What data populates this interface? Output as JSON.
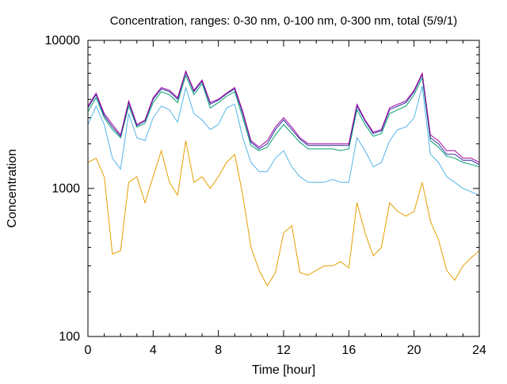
{
  "chart_data": {
    "type": "line",
    "title": "Concentration, ranges: 0-30 nm, 0-100 nm, 0-300 nm, total (5/9/1)",
    "xlabel": "Time [hour]",
    "ylabel": "Concentration",
    "xlim": [
      0,
      24
    ],
    "ylim": [
      100,
      10000
    ],
    "yscale": "log",
    "grid": false,
    "legend": "none",
    "x_ticks": [
      0,
      4,
      8,
      12,
      16,
      20,
      24
    ],
    "x_tick_labels": [
      "0",
      "4",
      "8",
      "12",
      "16",
      "20",
      "24"
    ],
    "y_ticks": [
      100,
      1000,
      10000
    ],
    "y_tick_labels": [
      "100",
      "1000",
      "10000"
    ],
    "x": [
      0,
      0.5,
      1,
      1.5,
      2,
      2.5,
      3,
      3.5,
      4,
      4.5,
      5,
      5.5,
      6,
      6.5,
      7,
      7.5,
      8,
      8.5,
      9,
      9.5,
      10,
      10.5,
      11,
      11.5,
      12,
      12.5,
      13,
      13.5,
      14,
      14.5,
      15,
      15.5,
      16,
      16.5,
      17,
      17.5,
      18,
      18.5,
      19,
      19.5,
      20,
      20.5,
      21,
      21.5,
      22,
      22.5,
      23,
      23.5,
      24
    ],
    "series": [
      {
        "color": "#a000a0",
        "values": [
          3600,
          4400,
          3200,
          2700,
          2300,
          3900,
          2700,
          2900,
          4100,
          4800,
          4600,
          4100,
          6200,
          4600,
          5400,
          3800,
          4000,
          4400,
          4800,
          3300,
          2100,
          1900,
          2100,
          2600,
          3000,
          2600,
          2200,
          2000,
          2000,
          2000,
          2000,
          2000,
          2000,
          3700,
          2900,
          2400,
          2500,
          3500,
          3700,
          3900,
          4600,
          6000,
          2300,
          2100,
          1800,
          1800,
          1600,
          1600,
          1500
        ]
      },
      {
        "color": "#3030a0",
        "values": [
          3500,
          4300,
          3100,
          2600,
          2250,
          3800,
          2650,
          2850,
          4000,
          4700,
          4500,
          4000,
          6100,
          4500,
          5300,
          3700,
          3950,
          4350,
          4700,
          3200,
          2050,
          1850,
          2000,
          2500,
          2900,
          2500,
          2150,
          1950,
          1950,
          1950,
          1950,
          1950,
          1950,
          3600,
          2850,
          2350,
          2450,
          3400,
          3600,
          3800,
          4500,
          5900,
          2200,
          2000,
          1700,
          1700,
          1550,
          1550,
          1450
        ]
      },
      {
        "color": "#009e73",
        "values": [
          3300,
          4100,
          3000,
          2500,
          2200,
          3600,
          2600,
          2750,
          3800,
          4500,
          4300,
          3800,
          5800,
          4300,
          5100,
          3500,
          3800,
          4200,
          4500,
          3000,
          1950,
          1800,
          1900,
          2300,
          2700,
          2350,
          2050,
          1850,
          1850,
          1850,
          1850,
          1800,
          1850,
          3400,
          2700,
          2250,
          2350,
          3200,
          3400,
          3600,
          4300,
          5600,
          2100,
          1900,
          1650,
          1600,
          1500,
          1450,
          1400
        ]
      },
      {
        "color": "#56b4e9",
        "values": [
          2700,
          3600,
          2700,
          1600,
          1350,
          3200,
          2200,
          2100,
          3000,
          3600,
          3400,
          2800,
          4800,
          3200,
          2900,
          2500,
          2700,
          3500,
          3700,
          2200,
          1500,
          1300,
          1300,
          1600,
          1800,
          1400,
          1200,
          1100,
          1100,
          1100,
          1150,
          1100,
          1100,
          2200,
          1800,
          1400,
          1500,
          2100,
          2500,
          2600,
          3000,
          4900,
          1700,
          1500,
          1200,
          1100,
          1000,
          950,
          900
        ]
      },
      {
        "color": "#e69f00",
        "values": [
          1500,
          1600,
          1200,
          360,
          380,
          1100,
          1200,
          800,
          1200,
          1800,
          1100,
          900,
          2100,
          1100,
          1200,
          1000,
          1200,
          1500,
          1700,
          900,
          400,
          280,
          220,
          270,
          500,
          560,
          270,
          260,
          280,
          300,
          300,
          320,
          290,
          800,
          500,
          350,
          400,
          800,
          700,
          650,
          700,
          1100,
          600,
          450,
          280,
          240,
          300,
          340,
          380
        ]
      }
    ]
  }
}
